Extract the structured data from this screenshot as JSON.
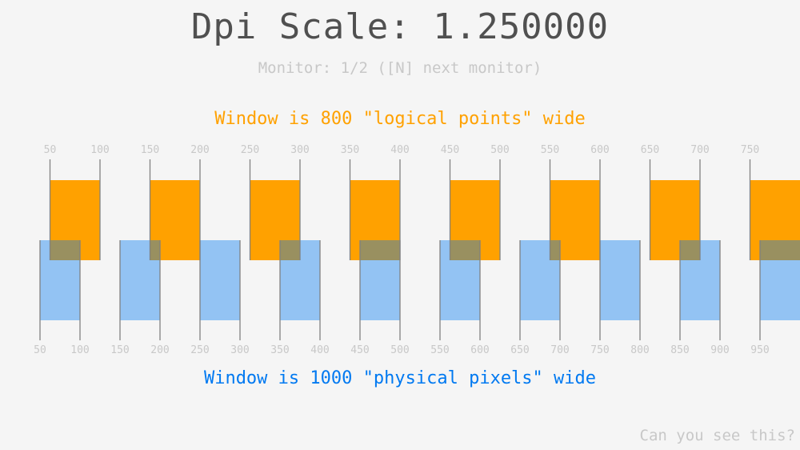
{
  "title": "Dpi Scale: 1.250000",
  "monitor": "Monitor: 1/2 ([N] next monitor)",
  "logical_caption": "Window is 800 \"logical points\" wide",
  "physical_caption": "Window is 1000 \"physical pixels\" wide",
  "footer": "Can you see this?",
  "dpi_scale": 1.25,
  "logical_ticks": [
    "50",
    "100",
    "150",
    "200",
    "250",
    "300",
    "350",
    "400",
    "450",
    "500",
    "550",
    "600",
    "650",
    "700",
    "750"
  ],
  "physical_ticks": [
    "50",
    "100",
    "150",
    "200",
    "250",
    "300",
    "350",
    "400",
    "450",
    "500",
    "550",
    "600",
    "650",
    "700",
    "750",
    "800",
    "850",
    "900",
    "950"
  ],
  "colors": {
    "logical": "#ffa100",
    "physical": "#0079f1",
    "line": "#808080",
    "label": "#c8c8c8"
  }
}
